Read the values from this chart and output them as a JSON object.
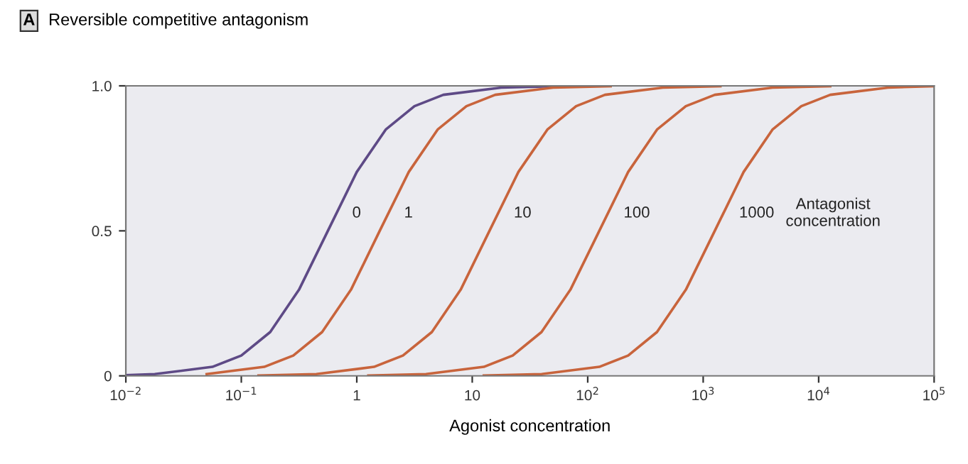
{
  "chart_data": {
    "type": "line",
    "title": "Reversible competitive antagonism",
    "xlabel": "Agonist concentration",
    "legend_title": "Antagonist\nconcentration",
    "annotations": [
      "A"
    ],
    "log": "x",
    "xlim": [
      0.01,
      100000
    ],
    "ylim": [
      0,
      1
    ],
    "xticks": [
      {
        "value": 0.01,
        "label": "10$^{−2}$"
      },
      {
        "value": 0.1,
        "label": "10$^{−1}$"
      },
      1,
      10,
      {
        "value": 100,
        "label": "10$^{2}$"
      },
      {
        "value": 1000,
        "label": "10$^{3}$"
      },
      {
        "value": 10000,
        "label": "10$^{4}$"
      },
      {
        "value": 100000,
        "label": "10$^{5}$"
      }
    ],
    "yticks": [
      0,
      0.5,
      {
        "value": 1,
        "label": "1.0"
      }
    ],
    "grid": false,
    "legend": false,
    "marker": "none",
    "line_style": "solid",
    "series": [
      {
        "name": "0",
        "color": "#5e4a86",
        "x": [
          0.01,
          0.0178,
          0.0562,
          0.1,
          0.178,
          0.316,
          0.562,
          1,
          1.78,
          3.16,
          5.62,
          17.8,
          56.2
        ],
        "values": [
          0.002,
          0.006,
          0.031,
          0.07,
          0.151,
          0.297,
          0.5,
          0.703,
          0.849,
          0.93,
          0.969,
          0.994,
          0.999
        ]
      },
      {
        "name": "1",
        "color": "#c8643c",
        "x": [
          0.0501,
          0.158,
          0.282,
          0.501,
          0.891,
          1.58,
          2.82,
          5.01,
          8.91,
          15.8,
          50.1,
          158
        ],
        "values": [
          0.006,
          0.031,
          0.07,
          0.151,
          0.297,
          0.5,
          0.703,
          0.849,
          0.93,
          0.969,
          0.994,
          0.999
        ]
      },
      {
        "name": "10",
        "color": "#c8643c",
        "x": [
          0.141,
          0.447,
          1.41,
          2.51,
          4.47,
          7.94,
          14.1,
          25.1,
          44.7,
          79.4,
          141,
          447,
          1410
        ],
        "values": [
          0.001,
          0.006,
          0.031,
          0.07,
          0.151,
          0.297,
          0.5,
          0.703,
          0.849,
          0.93,
          0.969,
          0.994,
          0.999
        ]
      },
      {
        "name": "100",
        "color": "#c8643c",
        "x": [
          1.26,
          3.98,
          12.6,
          22.4,
          39.8,
          70.8,
          126,
          224,
          398,
          708,
          1260,
          3980,
          12600
        ],
        "values": [
          0.001,
          0.006,
          0.031,
          0.07,
          0.151,
          0.297,
          0.5,
          0.703,
          0.849,
          0.93,
          0.969,
          0.994,
          0.999
        ]
      },
      {
        "name": "1000",
        "color": "#c8643c",
        "x": [
          12.6,
          39.8,
          126,
          224,
          398,
          708,
          1260,
          2240,
          3980,
          7080,
          12600,
          39800,
          100000
        ],
        "values": [
          0.001,
          0.006,
          0.031,
          0.07,
          0.151,
          0.297,
          0.5,
          0.703,
          0.849,
          0.93,
          0.969,
          0.994,
          0.999
        ]
      }
    ]
  }
}
